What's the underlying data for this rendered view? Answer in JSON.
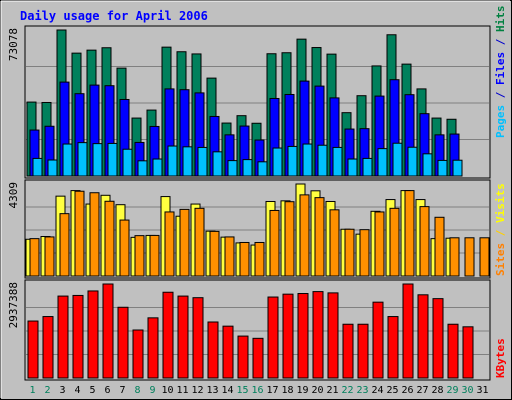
{
  "chart_data": {
    "type": "bar",
    "title": "Daily usage for April 2006",
    "categories": [
      "1",
      "2",
      "3",
      "4",
      "5",
      "6",
      "7",
      "8",
      "9",
      "10",
      "11",
      "12",
      "13",
      "14",
      "15",
      "16",
      "17",
      "18",
      "19",
      "20",
      "21",
      "22",
      "23",
      "24",
      "25",
      "26",
      "27",
      "28",
      "29",
      "30",
      "31"
    ],
    "weekend_days": [
      "1",
      "2",
      "8",
      "9",
      "15",
      "16",
      "22",
      "23",
      "29",
      "30"
    ],
    "panels": [
      {
        "id": "hits",
        "ymax_label": "73078",
        "ymax": 73078,
        "right_label_parts": [
          {
            "text": "Pages",
            "color": "#00c0ff"
          },
          {
            "text": " / ",
            "color": "#0000cc"
          },
          {
            "text": "Files",
            "color": "#0000ff"
          },
          {
            "text": " / ",
            "color": "#0000cc"
          },
          {
            "text": "Hits",
            "color": "#008040"
          }
        ],
        "series": [
          {
            "name": "Hits",
            "color": "#00805c",
            "values": [
              37000,
              36800,
              73078,
              61500,
              63000,
              64200,
              54000,
              29000,
              33000,
              64500,
              62200,
              61100,
              49000,
              26500,
              30200,
              26400,
              61200,
              61700,
              68500,
              64300,
              61000,
              31700,
              40200,
              55100,
              70700,
              56000,
              43600,
              29000,
              28400,
              0,
              0
            ]
          },
          {
            "name": "Files",
            "color": "#0000ff",
            "values": [
              23000,
              24900,
              47000,
              41200,
              45500,
              45200,
              38300,
              16800,
              24800,
              43600,
              43200,
              41600,
              29800,
              20600,
              25000,
              18000,
              38800,
              40800,
              47500,
              45000,
              39100,
              23500,
              23700,
              40000,
              48200,
              40700,
              31200,
              20600,
              21000,
              0,
              0
            ]
          },
          {
            "name": "Pages",
            "color": "#00c0ff",
            "values": [
              8800,
              8000,
              16000,
              16700,
              16200,
              16300,
              13400,
              7600,
              8500,
              15000,
              14600,
              14300,
              12100,
              7700,
              8200,
              7100,
              14000,
              14800,
              16000,
              15400,
              14300,
              8500,
              8800,
              13700,
              16400,
              14400,
              11100,
              7800,
              7900,
              0,
              0
            ]
          }
        ]
      },
      {
        "id": "visits",
        "ymax_label": "4309",
        "ymax": 4309,
        "right_label_parts": [
          {
            "text": "Sites",
            "color": "#ff8000"
          },
          {
            "text": " / ",
            "color": "#ffd000"
          },
          {
            "text": "Visits",
            "color": "#ffff00"
          }
        ],
        "series": [
          {
            "name": "Visits",
            "color": "#ffff40",
            "values": [
              1720,
              1850,
              3740,
              4000,
              3370,
              3780,
              3340,
              1810,
              1900,
              3720,
              2800,
              3370,
              2100,
              1820,
              1550,
              1450,
              3490,
              3520,
              4309,
              3990,
              3490,
              2190,
              1960,
              3030,
              3580,
              4000,
              3580,
              1750,
              1770,
              0,
              0
            ]
          },
          {
            "name": "Sites",
            "color": "#ff9000",
            "values": [
              1750,
              1830,
              2920,
              3970,
              3900,
              3500,
              2620,
              1890,
              1900,
              3000,
              3120,
              3170,
              2090,
              1830,
              1570,
              1570,
              3070,
              3480,
              3800,
              3670,
              3100,
              2190,
              2170,
              3000,
              3170,
              4000,
              3250,
              2750,
              1790,
              1790,
              1790
            ]
          }
        ]
      },
      {
        "id": "kbytes",
        "ymax_label": "2937388",
        "ymax": 2937388,
        "right_label_parts": [
          {
            "text": "KBytes",
            "color": "#ff0000"
          }
        ],
        "series": [
          {
            "name": "KBytes",
            "color": "#ff0000",
            "values": [
              1780000,
              1920000,
              2560000,
              2580000,
              2720000,
              2937388,
              2210000,
              1500000,
              1880000,
              2680000,
              2560000,
              2510000,
              1750000,
              1620000,
              1310000,
              1240000,
              2530000,
              2620000,
              2640000,
              2700000,
              2660000,
              1680000,
              1680000,
              2370000,
              1920000,
              2937388,
              2600000,
              2480000,
              1680000,
              1600000,
              0
            ]
          }
        ]
      }
    ]
  }
}
